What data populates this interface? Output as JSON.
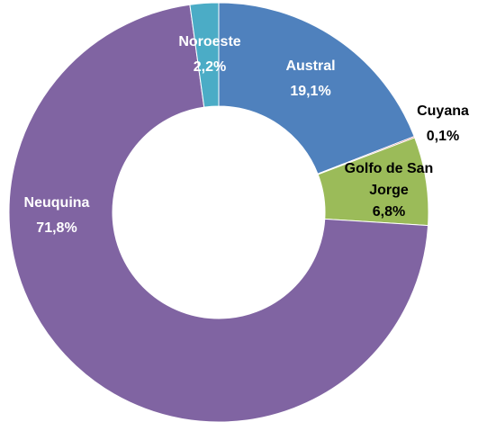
{
  "chart_data": {
    "type": "pie",
    "categories": [
      "Austral",
      "Cuyana",
      "Golfo de San Jorge",
      "Neuquina",
      "Noroeste"
    ],
    "values": [
      19.1,
      0.1,
      6.8,
      71.8,
      2.2
    ],
    "value_labels": [
      "19,1%",
      "0,1%",
      "6,8%",
      "71,8%",
      "2,2%"
    ],
    "colors": [
      "#4f81bd",
      "#c0504d",
      "#9bbb59",
      "#8064a2",
      "#4bacc6"
    ]
  }
}
